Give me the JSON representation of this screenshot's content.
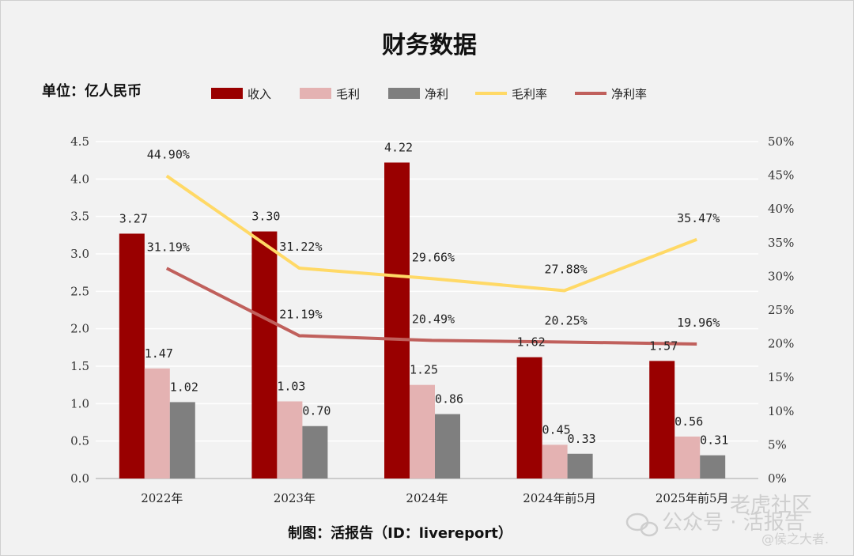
{
  "chart_data": {
    "type": "bar",
    "title": "财务数据",
    "unit_label": "单位：亿人民币",
    "categories": [
      "2022年",
      "2023年",
      "2024年",
      "2024年前5月",
      "2025年前5月"
    ],
    "series": [
      {
        "name": "收入",
        "kind": "bar",
        "axis": "left",
        "color": "#990000",
        "values": [
          3.27,
          3.3,
          4.22,
          1.62,
          1.57
        ],
        "labels": [
          "3.27",
          "3.30",
          "4.22",
          "1.62",
          "1.57"
        ]
      },
      {
        "name": "毛利",
        "kind": "bar",
        "axis": "left",
        "color": "#e4b2b2",
        "values": [
          1.47,
          1.03,
          1.25,
          0.45,
          0.56
        ],
        "labels": [
          "1.47",
          "1.03",
          "1.25",
          "0.45",
          "0.56"
        ]
      },
      {
        "name": "净利",
        "kind": "bar",
        "axis": "left",
        "color": "#7f7f7f",
        "values": [
          1.02,
          0.7,
          0.86,
          0.33,
          0.31
        ],
        "labels": [
          "1.02",
          "0.70",
          "0.86",
          "0.33",
          "0.31"
        ]
      },
      {
        "name": "毛利率",
        "kind": "line",
        "axis": "right",
        "color": "#ffd966",
        "values": [
          44.9,
          31.22,
          29.66,
          27.88,
          35.47
        ],
        "labels": [
          "44.90%",
          "31.22%",
          "29.66%",
          "27.88%",
          "35.47%"
        ]
      },
      {
        "name": "净利率",
        "kind": "line",
        "axis": "right",
        "color": "#c0605c",
        "values": [
          31.19,
          21.19,
          20.49,
          20.25,
          19.96
        ],
        "labels": [
          "31.19%",
          "21.19%",
          "20.49%",
          "20.25%",
          "19.96%"
        ]
      }
    ],
    "y_left": {
      "ylim": [
        0,
        4.5
      ],
      "ticks": [
        "0.0",
        "0.5",
        "1.0",
        "1.5",
        "2.0",
        "2.5",
        "3.0",
        "3.5",
        "4.0",
        "4.5"
      ]
    },
    "y_right": {
      "ylim": [
        0,
        50
      ],
      "ticks": [
        "0%",
        "5%",
        "10%",
        "15%",
        "20%",
        "25%",
        "30%",
        "35%",
        "40%",
        "45%",
        "50%"
      ]
    },
    "grid": true,
    "legend_position": "top",
    "source_note": "制图：活报告（ID：livereport）"
  },
  "watermark": {
    "line1": "老虎社区",
    "line2": "公众号 · 活报告",
    "line3": "@侯之大者."
  }
}
